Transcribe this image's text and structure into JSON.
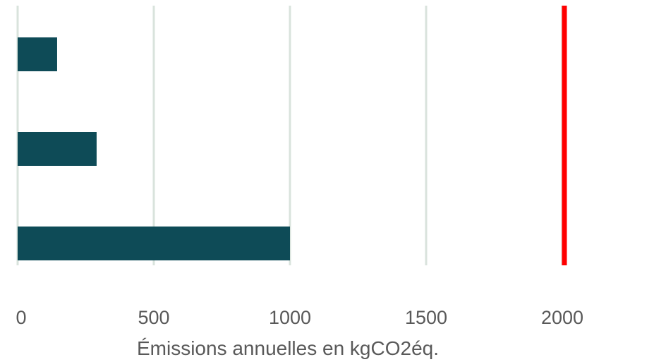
{
  "chart_data": {
    "type": "bar",
    "orientation": "horizontal",
    "xlabel": "Émissions annuelles en kgCO2éq.",
    "xlim": [
      0,
      2000
    ],
    "x_ticks": [
      "0",
      "500",
      "1000",
      "1500",
      "2000"
    ],
    "grid": "vertical",
    "values": [
      145,
      290,
      1000
    ],
    "reference_line": {
      "value": 2000,
      "color": "#ff0000"
    },
    "colors": {
      "bar": "#0e4b57",
      "grid": "#d9e3dc",
      "tick_text": "#595959"
    }
  }
}
